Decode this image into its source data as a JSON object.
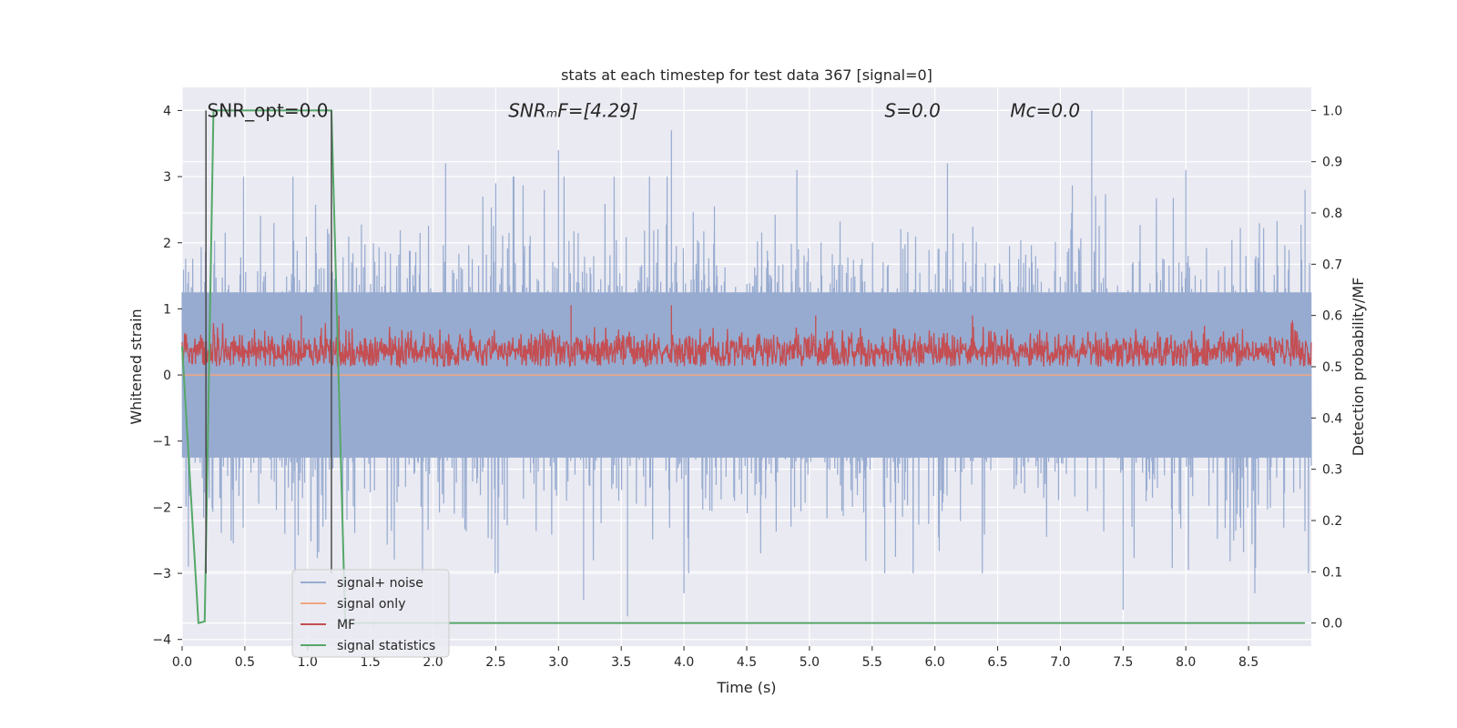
{
  "chart_data": {
    "type": "line",
    "title": "stats at each timestep for test data 367 [signal=0]",
    "xlabel": "Time (s)",
    "ylabel": "Whitened strain",
    "y2label": "Detection probability/MF",
    "xlim": [
      0.0,
      9.0
    ],
    "ylim": [
      -4.1,
      4.35
    ],
    "y2lim": [
      -0.045,
      1.045
    ],
    "x_ticks": [
      0.0,
      0.5,
      1.0,
      1.5,
      2.0,
      2.5,
      3.0,
      3.5,
      4.0,
      4.5,
      5.0,
      5.5,
      6.0,
      6.5,
      7.0,
      7.5,
      8.0,
      8.5
    ],
    "x_tick_labels": [
      "0.0",
      "0.5",
      "1.0",
      "1.5",
      "2.0",
      "2.5",
      "3.0",
      "3.5",
      "4.0",
      "4.5",
      "5.0",
      "5.5",
      "6.0",
      "6.5",
      "7.0",
      "7.5",
      "8.0",
      "8.5"
    ],
    "y_ticks": [
      -4,
      -3,
      -2,
      -1,
      0,
      1,
      2,
      3,
      4
    ],
    "y_tick_labels": [
      "−4",
      "−3",
      "−2",
      "−1",
      "0",
      "1",
      "2",
      "3",
      "4"
    ],
    "y2_ticks": [
      0.0,
      0.1,
      0.2,
      0.3,
      0.4,
      0.5,
      0.6,
      0.7,
      0.8,
      0.9,
      1.0
    ],
    "y2_tick_labels": [
      "0.0",
      "0.1",
      "0.2",
      "0.3",
      "0.4",
      "0.5",
      "0.6",
      "0.7",
      "0.8",
      "0.9",
      "1.0"
    ],
    "grid": true,
    "legend_position": "lower-left",
    "annotations": [
      {
        "x": 0.2,
        "y": 4.0,
        "text": "SNR_opt=0.0",
        "italic": false
      },
      {
        "x": 2.6,
        "y": 4.0,
        "text": "SNRₘF=[4.29]",
        "italic": true
      },
      {
        "x": 5.6,
        "y": 4.0,
        "text": "S=0.0",
        "italic": true
      },
      {
        "x": 6.6,
        "y": 4.0,
        "text": "Mᴄ=0.0",
        "italic": true
      }
    ],
    "series": [
      {
        "name": "signal+ noise",
        "color": "#97abd0",
        "axis": "left",
        "kind": "noise-band",
        "approx_envelope": {
          "typical_abs": 1.4,
          "max": 4.0,
          "min": -3.65
        },
        "peaks": [
          {
            "x": 0.05,
            "y": -2.9
          },
          {
            "x": 0.9,
            "y": -3.0
          },
          {
            "x": 2.1,
            "y": 3.2
          },
          {
            "x": 2.5,
            "y": 2.9
          },
          {
            "x": 3.0,
            "y": 3.4
          },
          {
            "x": 3.2,
            "y": -3.4
          },
          {
            "x": 3.55,
            "y": -3.65
          },
          {
            "x": 3.9,
            "y": 3.7
          },
          {
            "x": 4.0,
            "y": -3.3
          },
          {
            "x": 4.9,
            "y": 3.1
          },
          {
            "x": 5.6,
            "y": -3.0
          },
          {
            "x": 6.1,
            "y": 3.2
          },
          {
            "x": 7.25,
            "y": 4.0
          },
          {
            "x": 7.5,
            "y": -3.55
          },
          {
            "x": 8.0,
            "y": 3.1
          },
          {
            "x": 8.55,
            "y": -3.3
          },
          {
            "x": 8.95,
            "y": 2.8
          }
        ]
      },
      {
        "name": "signal only",
        "color": "#f1a580",
        "axis": "left",
        "kind": "flat",
        "value": 0.0
      },
      {
        "name": "MF",
        "color": "#c44e52",
        "axis": "right",
        "kind": "noise-band",
        "approx_envelope": {
          "mean": 0.53,
          "low": 0.5,
          "high": 0.6
        },
        "peaks": [
          {
            "x": 0.95,
            "y": 0.6
          },
          {
            "x": 1.25,
            "y": 0.6
          },
          {
            "x": 3.1,
            "y": 0.62
          },
          {
            "x": 3.9,
            "y": 0.62
          },
          {
            "x": 5.05,
            "y": 0.6
          },
          {
            "x": 6.3,
            "y": 0.6
          },
          {
            "x": 8.85,
            "y": 0.59
          }
        ]
      },
      {
        "name": "signal statistics",
        "color": "#55a868",
        "axis": "right",
        "kind": "line",
        "x": [
          0.0,
          0.13,
          0.18,
          0.25,
          1.19,
          1.3,
          1.45,
          8.95
        ],
        "y": [
          0.54,
          0.0,
          0.003,
          1.0,
          1.0,
          0.0,
          0.0,
          0.0
        ]
      }
    ],
    "vertical_lines": [
      {
        "x": 0.19,
        "color": "#4a4a4a"
      },
      {
        "x": 1.19,
        "color": "#4a4a4a"
      }
    ]
  }
}
